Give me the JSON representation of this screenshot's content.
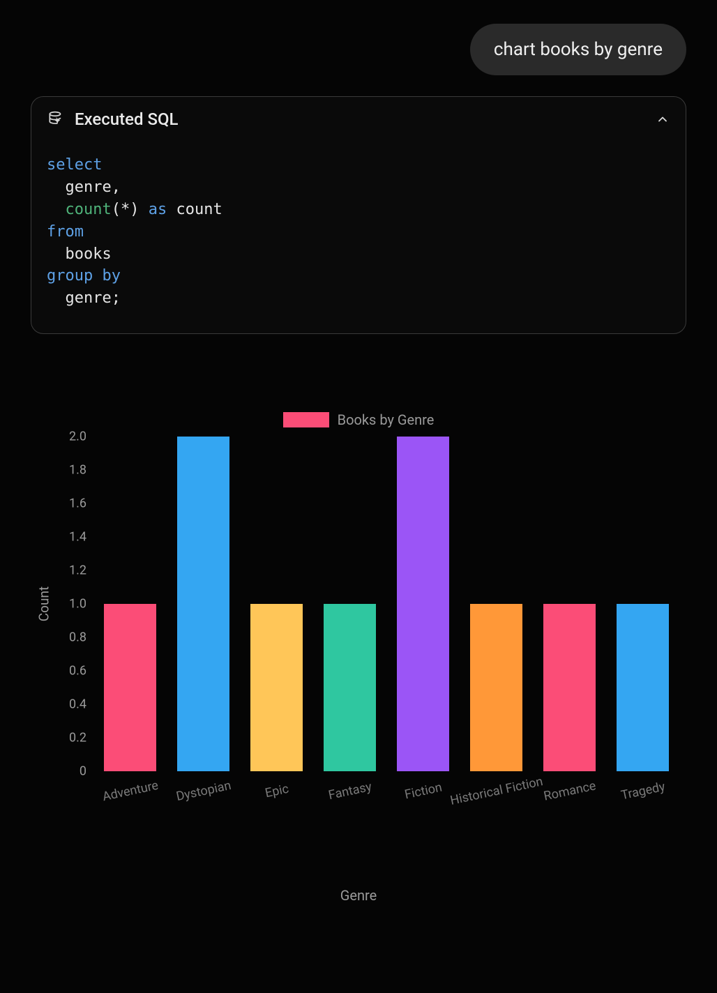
{
  "user_message": "chart books by genre",
  "sql_card": {
    "title": "Executed SQL",
    "code_tokens": [
      {
        "t": "select",
        "c": "kw"
      },
      {
        "t": "\n  genre",
        "c": "id"
      },
      {
        "t": ",",
        "c": "pn"
      },
      {
        "t": "\n  ",
        "c": "pn"
      },
      {
        "t": "count",
        "c": "fn"
      },
      {
        "t": "(",
        "c": "pn"
      },
      {
        "t": "*",
        "c": "pn"
      },
      {
        "t": ")",
        "c": "pn"
      },
      {
        "t": " ",
        "c": "pn"
      },
      {
        "t": "as",
        "c": "kw"
      },
      {
        "t": " count",
        "c": "id"
      },
      {
        "t": "\n",
        "c": "pn"
      },
      {
        "t": "from",
        "c": "kw"
      },
      {
        "t": "\n  books",
        "c": "id"
      },
      {
        "t": "\n",
        "c": "pn"
      },
      {
        "t": "group by",
        "c": "kw"
      },
      {
        "t": "\n  genre",
        "c": "id"
      },
      {
        "t": ";",
        "c": "pn"
      }
    ]
  },
  "chart": {
    "type": "bar",
    "legend_label": "Books by Genre",
    "legend_swatch_color": "#fb4d77",
    "y_label": "Count",
    "x_label": "Genre",
    "ylim": [
      0,
      2.0
    ],
    "y_ticks": [
      0,
      0.2,
      0.4,
      0.6,
      0.8,
      1.0,
      1.2,
      1.4,
      1.6,
      1.8,
      2.0
    ],
    "y_tick_labels": [
      "0",
      "0.2",
      "0.4",
      "0.6",
      "0.8",
      "1.0",
      "1.2",
      "1.4",
      "1.6",
      "1.8",
      "2.0"
    ],
    "categories": [
      "Adventure",
      "Dystopian",
      "Epic",
      "Fantasy",
      "Fiction",
      "Historical Fiction",
      "Romance",
      "Tragedy"
    ],
    "values": [
      1,
      2,
      1,
      1,
      2,
      1,
      1,
      1
    ],
    "bar_colors": [
      "#fb4d77",
      "#34a6f2",
      "#ffc658",
      "#2fc7a0",
      "#9b55f6",
      "#ff9838",
      "#fb4d77",
      "#34a6f2"
    ],
    "bar_width_ratio": 0.72,
    "background_color": "#050505",
    "tick_color": "#9a9a9a",
    "xlabel_rotation_deg": -12,
    "label_fontsize": 19,
    "tick_fontsize": 18
  }
}
